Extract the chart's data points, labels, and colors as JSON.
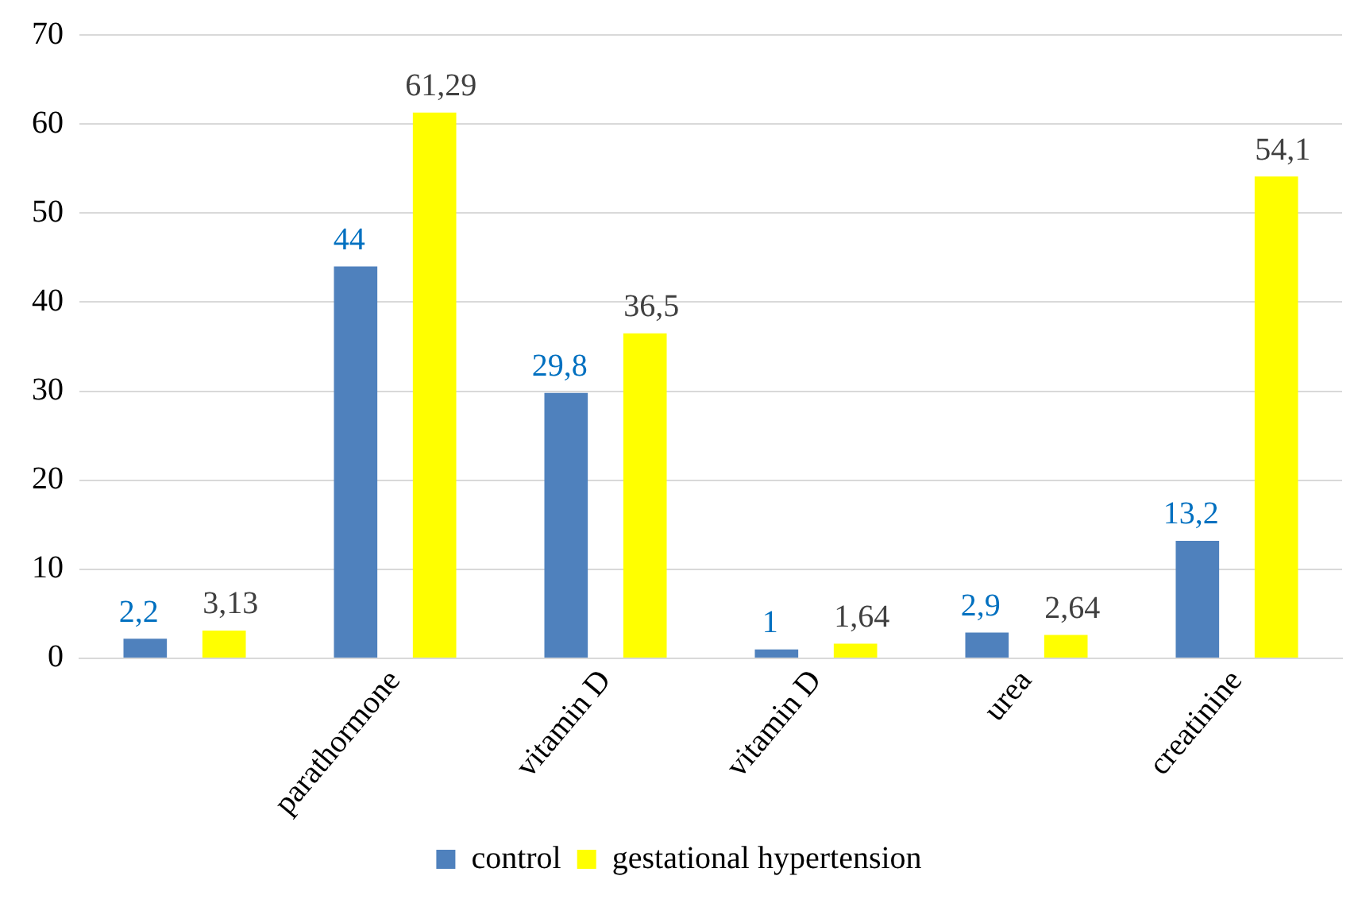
{
  "chart_data": {
    "type": "bar",
    "categories": [
      null,
      "parathormone",
      "vitamin D",
      "vitamin D",
      "urea",
      "creatinine"
    ],
    "series": [
      {
        "name": "control",
        "color": "#4f81bd",
        "values": [
          2.2,
          44,
          29.8,
          1,
          2.9,
          13.2
        ],
        "value_labels": [
          "2,2",
          "44",
          "29,8",
          "1",
          "2,9",
          "13,2"
        ]
      },
      {
        "name": "gestational hypertension",
        "color": "#ffff00",
        "values": [
          3.13,
          61.29,
          36.5,
          1.64,
          2.64,
          54.1
        ],
        "value_labels": [
          "3,13",
          "61,29",
          "36,5",
          "1,64",
          "2,64",
          "54,1"
        ]
      }
    ],
    "ylim": [
      0,
      70
    ],
    "yticks": [
      0,
      10,
      20,
      30,
      40,
      50,
      60,
      70
    ],
    "grid": "y",
    "legend": "bottom"
  }
}
